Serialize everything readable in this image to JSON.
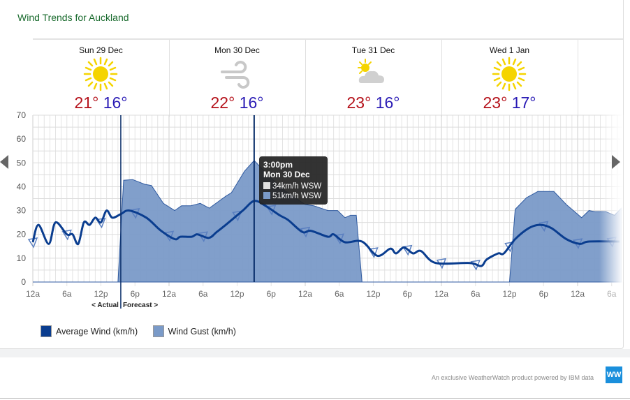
{
  "title": "Wind Trends for Auckland",
  "days": [
    {
      "name": "Sun 29 Dec",
      "icon": "sun-icon",
      "high": "21°",
      "low": "16°"
    },
    {
      "name": "Mon 30 Dec",
      "icon": "wind-icon",
      "high": "22°",
      "low": "16°"
    },
    {
      "name": "Tue 31 Dec",
      "icon": "partly-cloudy-icon",
      "high": "23°",
      "low": "16°"
    },
    {
      "name": "Wed 1 Jan",
      "icon": "sun-icon",
      "high": "23°",
      "low": "17°"
    }
  ],
  "tooltip": {
    "time": "3:00pm",
    "date": "Mon 30 Dec",
    "avg": "34km/h WSW",
    "gust": "51km/h WSW"
  },
  "markers": {
    "actual": "< Actual",
    "forecast": "Forecast >"
  },
  "legend": {
    "avg": "Average Wind (km/h)",
    "gust": "Wind Gust (km/h)"
  },
  "footer": {
    "powered": "An exclusive WeatherWatch product powered by IBM data",
    "logo": "WW"
  },
  "colors": {
    "avg": "#0a3d8f",
    "gust": "#7a9ac8",
    "title": "#1a6b2e",
    "high": "#b5121b",
    "low": "#2a1bb5"
  },
  "chart_data": {
    "type": "area",
    "x_unit": "hours from Sun 29 Dec 12am",
    "ylim": [
      0,
      70
    ],
    "yticks": [
      0,
      10,
      20,
      30,
      40,
      50,
      60,
      70
    ],
    "xticks": [
      {
        "h": 0,
        "label": "12a"
      },
      {
        "h": 6,
        "label": "6a"
      },
      {
        "h": 12,
        "label": "12p"
      },
      {
        "h": 18,
        "label": "6p"
      },
      {
        "h": 24,
        "label": "12a"
      },
      {
        "h": 30,
        "label": "6a"
      },
      {
        "h": 36,
        "label": "12p"
      },
      {
        "h": 42,
        "label": "6p"
      },
      {
        "h": 48,
        "label": "12a"
      },
      {
        "h": 54,
        "label": "6a"
      },
      {
        "h": 60,
        "label": "12p"
      },
      {
        "h": 66,
        "label": "6p"
      },
      {
        "h": 72,
        "label": "12a"
      },
      {
        "h": 78,
        "label": "6a"
      },
      {
        "h": 84,
        "label": "12p"
      },
      {
        "h": 90,
        "label": "6p"
      },
      {
        "h": 96,
        "label": "12a"
      },
      {
        "h": 102,
        "label": "6a"
      }
    ],
    "grid": true,
    "actual_forecast_split_h": 15.5,
    "hover_h": 39,
    "series": [
      {
        "name": "Wind Gust (km/h)",
        "type": "area",
        "points": [
          [
            0,
            0
          ],
          [
            15,
            0
          ],
          [
            16,
            42.7
          ],
          [
            17.6,
            43
          ],
          [
            19.7,
            41
          ],
          [
            20.9,
            40.5
          ],
          [
            23,
            33
          ],
          [
            25,
            30
          ],
          [
            26.2,
            32
          ],
          [
            27.8,
            32
          ],
          [
            29.5,
            33
          ],
          [
            31.1,
            31
          ],
          [
            34,
            36
          ],
          [
            35,
            37.5
          ],
          [
            37.3,
            46.5
          ],
          [
            39,
            51
          ],
          [
            41,
            46
          ],
          [
            44,
            39
          ],
          [
            48,
            32.5
          ],
          [
            49.5,
            32
          ],
          [
            52,
            30
          ],
          [
            53.7,
            30
          ],
          [
            55,
            27
          ],
          [
            56,
            28
          ],
          [
            57,
            28
          ],
          [
            58,
            0
          ],
          [
            84,
            0
          ],
          [
            85,
            30.5
          ],
          [
            87,
            35.4
          ],
          [
            89,
            38
          ],
          [
            91.8,
            38
          ],
          [
            94,
            32.5
          ],
          [
            96.7,
            27
          ],
          [
            98,
            30
          ],
          [
            99,
            29.5
          ],
          [
            101,
            29.5
          ],
          [
            102.5,
            28
          ],
          [
            103.7,
            31
          ]
        ]
      },
      {
        "name": "Average Wind (km/h)",
        "type": "line",
        "points": [
          [
            0,
            16.7
          ],
          [
            1,
            24
          ],
          [
            2.8,
            16
          ],
          [
            4,
            25
          ],
          [
            6,
            20
          ],
          [
            7,
            20
          ],
          [
            8,
            16
          ],
          [
            9,
            25
          ],
          [
            10,
            24
          ],
          [
            11,
            27
          ],
          [
            12,
            25
          ],
          [
            13,
            30
          ],
          [
            14,
            27
          ],
          [
            15.5,
            28.5
          ],
          [
            17,
            30
          ],
          [
            20,
            27
          ],
          [
            22.5,
            21.7
          ],
          [
            25,
            18
          ],
          [
            26,
            19
          ],
          [
            28,
            19
          ],
          [
            29,
            20
          ],
          [
            31,
            18.5
          ],
          [
            32.4,
            21
          ],
          [
            34,
            24
          ],
          [
            37,
            30
          ],
          [
            39,
            34
          ],
          [
            41,
            32
          ],
          [
            43.5,
            28
          ],
          [
            45,
            26
          ],
          [
            47.5,
            21
          ],
          [
            49,
            21.5
          ],
          [
            52,
            19
          ],
          [
            53,
            20
          ],
          [
            55,
            16.7
          ],
          [
            58,
            17
          ],
          [
            60.7,
            11
          ],
          [
            63,
            14
          ],
          [
            64,
            12
          ],
          [
            65.4,
            14.5
          ],
          [
            67,
            12
          ],
          [
            68.4,
            13
          ],
          [
            71,
            8
          ],
          [
            77,
            8
          ],
          [
            79,
            6.7
          ],
          [
            80,
            9.5
          ],
          [
            82,
            12
          ],
          [
            83,
            12
          ],
          [
            85,
            18
          ],
          [
            87.4,
            22.6
          ],
          [
            89.4,
            24
          ],
          [
            91.4,
            22.6
          ],
          [
            94,
            18
          ],
          [
            96.4,
            16
          ],
          [
            98,
            17
          ],
          [
            103.4,
            17
          ]
        ]
      }
    ]
  }
}
